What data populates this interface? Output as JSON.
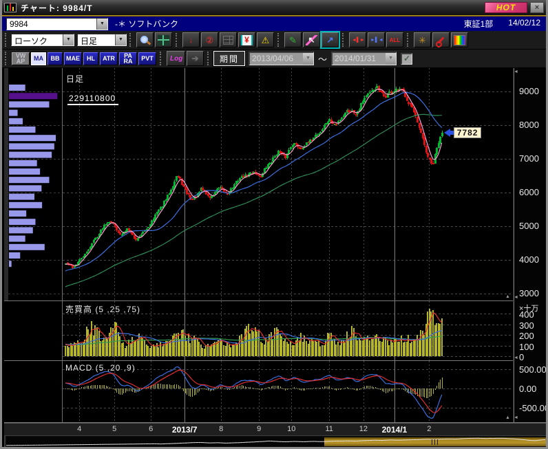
{
  "window": {
    "title": "チャート: 9984/T",
    "hot_label": "HOT",
    "close_label": "×"
  },
  "symbol_bar": {
    "code": "9984",
    "name_prefix": "-＊",
    "name": "ソフトバンク",
    "market": "東証1部",
    "date": "14/02/12"
  },
  "toolbar1": {
    "chart_type": "ローソク",
    "timeframe": "日足",
    "all_label": "ALL",
    "icons": [
      "magnifier-icon",
      "grid-icon",
      "trend-arrow-icon",
      "circle-2-icon",
      "table-icon",
      "yen-icon",
      "alert-icon",
      "draw-icon",
      "pointer-icon",
      "pan-icon",
      "bar-expand-icon",
      "bar-compress-icon",
      "all-button",
      "web-icon",
      "wrench-icon",
      "palette-icon"
    ]
  },
  "toolbar2": {
    "indicators": [
      {
        "id": "vwap",
        "label": "VW\nAP",
        "state": "disabled"
      },
      {
        "id": "ma",
        "label": "MA",
        "state": "active"
      },
      {
        "id": "bb",
        "label": "BB",
        "state": "normal"
      },
      {
        "id": "mae",
        "label": "MAE",
        "state": "normal"
      },
      {
        "id": "hl",
        "label": "HL",
        "state": "normal"
      },
      {
        "id": "atr",
        "label": "ATR",
        "state": "normal"
      },
      {
        "id": "para",
        "label": "PA\nRA",
        "state": "normal"
      },
      {
        "id": "pvt",
        "label": "PVT",
        "state": "normal"
      }
    ],
    "log_label": "Log",
    "period_label": "期間",
    "date_from": "2013/04/06",
    "tilde": "～",
    "date_to": "2014/01/31",
    "range_checkbox": "checked"
  },
  "main_chart": {
    "label": "日足",
    "volume_at_price": "229110800",
    "last_price": "7782",
    "y_ticks": [
      "9000",
      "8000",
      "7000",
      "6000",
      "5000",
      "4000",
      "3000"
    ]
  },
  "volume_panel": {
    "label": "売買高 (5 ,25 ,75)",
    "unit": "×十万",
    "ticks": [
      "400",
      "300",
      "200",
      "100",
      "0"
    ]
  },
  "macd_panel": {
    "label": "MACD (5 ,20 ,9)",
    "ticks": [
      "500.00",
      "0.00",
      "-500.00"
    ]
  },
  "chart_data": {
    "type": "candlestick",
    "symbol": "9984 ソフトバンク 東証1部",
    "timeframe": "日足",
    "visible_range": {
      "from": "2013/04/06",
      "to": "2014/02/12"
    },
    "y_axis": {
      "min": 3000,
      "max": 9300,
      "ticks": [
        3000,
        4000,
        5000,
        6000,
        7000,
        8000,
        9000
      ]
    },
    "last_price": 7782,
    "volume_at_price_label": 229110800,
    "num_candles": 215,
    "colors": {
      "up": "#00b830",
      "down": "#e01010",
      "ma5": "#ff9ed2",
      "ma25": "#3b6fe0",
      "ma75": "#2e8b57",
      "vol_bar": "#b5b52a",
      "vol_ma5": "#e03030",
      "vol_ma25": "#3b6fe0",
      "vol_ma75": "#30a050",
      "macd_line": "#3b6fe0",
      "macd_signal": "#e03030",
      "macd_hist": "#b5b52a",
      "profile_bar": "#9898ea",
      "profile_hot": "#55108a",
      "grid": "#4a4a4a",
      "grid_solid": "#808080"
    },
    "price_anchors": [
      [
        0,
        3900
      ],
      [
        0.02,
        3780
      ],
      [
        0.05,
        4150
      ],
      [
        0.08,
        4650
      ],
      [
        0.1,
        5000
      ],
      [
        0.12,
        5200
      ],
      [
        0.145,
        4720
      ],
      [
        0.165,
        4950
      ],
      [
        0.185,
        4600
      ],
      [
        0.21,
        4850
      ],
      [
        0.24,
        5350
      ],
      [
        0.27,
        5850
      ],
      [
        0.295,
        6500
      ],
      [
        0.315,
        6150
      ],
      [
        0.335,
        5750
      ],
      [
        0.36,
        6100
      ],
      [
        0.385,
        5850
      ],
      [
        0.41,
        6150
      ],
      [
        0.43,
        5950
      ],
      [
        0.455,
        6350
      ],
      [
        0.475,
        6500
      ],
      [
        0.5,
        6600
      ],
      [
        0.52,
        6500
      ],
      [
        0.545,
        6950
      ],
      [
        0.565,
        7200
      ],
      [
        0.585,
        7050
      ],
      [
        0.605,
        7500
      ],
      [
        0.625,
        7300
      ],
      [
        0.65,
        7550
      ],
      [
        0.675,
        7800
      ],
      [
        0.7,
        8150
      ],
      [
        0.72,
        8000
      ],
      [
        0.745,
        8450
      ],
      [
        0.77,
        8350
      ],
      [
        0.8,
        8900
      ],
      [
        0.825,
        9100
      ],
      [
        0.85,
        8850
      ],
      [
        0.875,
        9050
      ],
      [
        0.9,
        8950
      ],
      [
        0.92,
        8500
      ],
      [
        0.94,
        7900
      ],
      [
        0.96,
        7100
      ],
      [
        0.975,
        6820
      ],
      [
        0.99,
        7450
      ],
      [
        1.0,
        7782
      ]
    ],
    "moving_averages": {
      "periods": [
        5,
        25,
        75
      ]
    },
    "volume": {
      "unit": "×十万",
      "ticks": [
        0,
        100,
        200,
        300,
        400
      ],
      "anchors": [
        [
          0,
          90
        ],
        [
          0.05,
          180
        ],
        [
          0.07,
          300
        ],
        [
          0.1,
          120
        ],
        [
          0.13,
          290
        ],
        [
          0.16,
          100
        ],
        [
          0.19,
          200
        ],
        [
          0.22,
          90
        ],
        [
          0.27,
          120
        ],
        [
          0.3,
          230
        ],
        [
          0.33,
          170
        ],
        [
          0.37,
          90
        ],
        [
          0.41,
          150
        ],
        [
          0.45,
          100
        ],
        [
          0.5,
          290
        ],
        [
          0.53,
          140
        ],
        [
          0.56,
          220
        ],
        [
          0.6,
          120
        ],
        [
          0.63,
          190
        ],
        [
          0.67,
          110
        ],
        [
          0.7,
          180
        ],
        [
          0.73,
          130
        ],
        [
          0.76,
          230
        ],
        [
          0.8,
          150
        ],
        [
          0.83,
          200
        ],
        [
          0.86,
          120
        ],
        [
          0.9,
          160
        ],
        [
          0.93,
          140
        ],
        [
          0.955,
          260
        ],
        [
          0.97,
          450
        ],
        [
          0.985,
          240
        ],
        [
          1.0,
          300
        ]
      ]
    },
    "macd": {
      "params": [
        5,
        20,
        9
      ],
      "ticks": [
        500,
        0,
        -500
      ]
    },
    "volume_profile": {
      "highlight_index": 1,
      "bars": [
        0.32,
        0.95,
        0.79,
        0.17,
        0.27,
        0.52,
        0.92,
        0.89,
        0.84,
        0.55,
        0.61,
        0.79,
        0.64,
        0.5,
        0.65,
        0.34,
        0.52,
        0.47,
        0.32,
        0.7,
        0.22,
        0.05
      ]
    },
    "x_axis_months": [
      {
        "label": "4",
        "xf": 0.037,
        "bold": false
      },
      {
        "label": "5",
        "xf": 0.115,
        "bold": false
      },
      {
        "label": "6",
        "xf": 0.196,
        "bold": false
      },
      {
        "label": "2013/7",
        "xf": 0.271,
        "bold": true
      },
      {
        "label": "8",
        "xf": 0.352,
        "bold": false
      },
      {
        "label": "9",
        "xf": 0.436,
        "bold": false
      },
      {
        "label": "10",
        "xf": 0.508,
        "bold": false
      },
      {
        "label": "11",
        "xf": 0.592,
        "bold": false
      },
      {
        "label": "12",
        "xf": 0.668,
        "bold": false
      },
      {
        "label": "2014/1",
        "xf": 0.737,
        "bold": true
      },
      {
        "label": "2",
        "xf": 0.814,
        "bold": false
      }
    ]
  }
}
